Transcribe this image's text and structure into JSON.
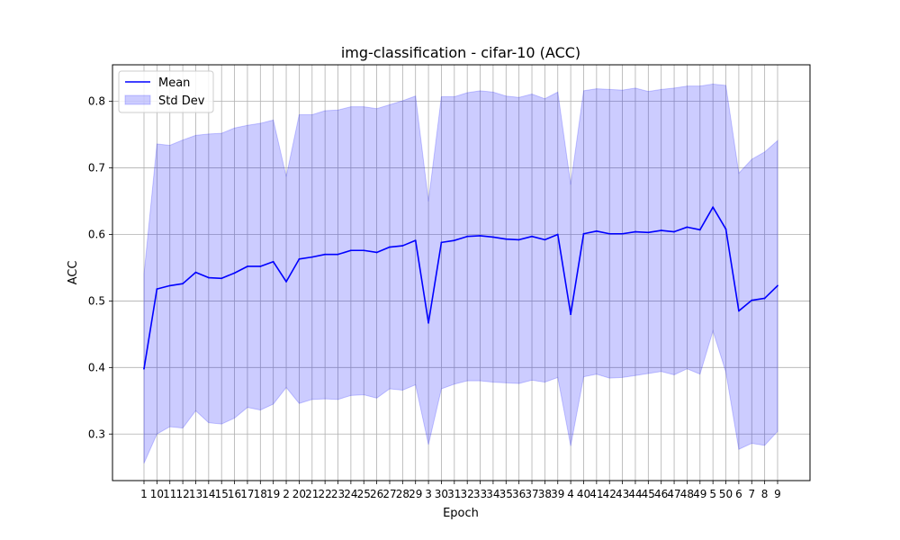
{
  "chart_data": {
    "type": "line",
    "title": "img-classification - cifar-10 (ACC)",
    "xlabel": "Epoch",
    "ylabel": "ACC",
    "categories": [
      "1",
      "10",
      "11",
      "12",
      "13",
      "14",
      "15",
      "16",
      "17",
      "18",
      "19",
      "2",
      "20",
      "21",
      "22",
      "23",
      "24",
      "25",
      "26",
      "27",
      "28",
      "29",
      "3",
      "30",
      "31",
      "32",
      "33",
      "34",
      "35",
      "36",
      "37",
      "38",
      "39",
      "4",
      "40",
      "41",
      "42",
      "43",
      "44",
      "45",
      "46",
      "47",
      "48",
      "49",
      "5",
      "50",
      "6",
      "7",
      "8",
      "9"
    ],
    "series": [
      {
        "name": "Mean",
        "color": "#0000ff",
        "values": [
          0.398,
          0.518,
          0.523,
          0.526,
          0.543,
          0.535,
          0.534,
          0.542,
          0.552,
          0.552,
          0.559,
          0.529,
          0.563,
          0.566,
          0.57,
          0.57,
          0.576,
          0.576,
          0.573,
          0.581,
          0.583,
          0.591,
          0.467,
          0.588,
          0.591,
          0.597,
          0.598,
          0.596,
          0.593,
          0.592,
          0.597,
          0.592,
          0.6,
          0.48,
          0.601,
          0.605,
          0.601,
          0.601,
          0.604,
          0.603,
          0.606,
          0.604,
          0.611,
          0.607,
          0.641,
          0.608,
          0.485,
          0.501,
          0.504,
          0.523
        ]
      },
      {
        "name": "Std Dev",
        "color": "#0000ff",
        "upper": [
          0.54,
          0.736,
          0.734,
          0.742,
          0.749,
          0.751,
          0.752,
          0.76,
          0.764,
          0.767,
          0.772,
          0.687,
          0.78,
          0.78,
          0.786,
          0.787,
          0.792,
          0.792,
          0.789,
          0.795,
          0.801,
          0.808,
          0.65,
          0.807,
          0.807,
          0.813,
          0.816,
          0.814,
          0.808,
          0.806,
          0.811,
          0.804,
          0.814,
          0.675,
          0.816,
          0.819,
          0.818,
          0.817,
          0.82,
          0.815,
          0.818,
          0.82,
          0.823,
          0.823,
          0.826,
          0.824,
          0.692,
          0.713,
          0.724,
          0.741
        ],
        "lower": [
          0.256,
          0.3,
          0.311,
          0.309,
          0.335,
          0.317,
          0.315,
          0.324,
          0.34,
          0.336,
          0.345,
          0.37,
          0.346,
          0.352,
          0.353,
          0.352,
          0.358,
          0.359,
          0.354,
          0.368,
          0.366,
          0.374,
          0.284,
          0.368,
          0.375,
          0.38,
          0.38,
          0.378,
          0.377,
          0.376,
          0.381,
          0.378,
          0.385,
          0.282,
          0.386,
          0.39,
          0.384,
          0.385,
          0.388,
          0.391,
          0.394,
          0.389,
          0.398,
          0.39,
          0.455,
          0.393,
          0.277,
          0.286,
          0.283,
          0.304
        ]
      }
    ],
    "ylim": [
      0.23,
      0.855
    ],
    "yticks": [
      "0.3",
      "0.4",
      "0.5",
      "0.6",
      "0.7",
      "0.8"
    ],
    "grid": true,
    "legend_position": "top-left"
  }
}
